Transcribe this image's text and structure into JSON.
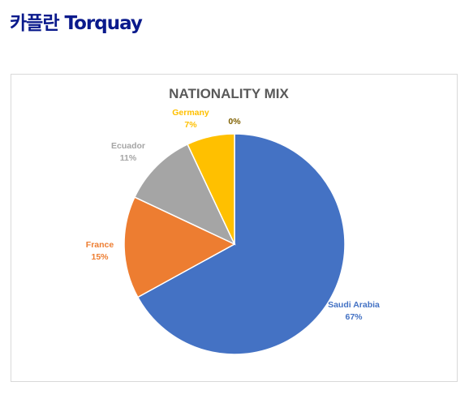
{
  "page": {
    "heading": "카플란 Torquay"
  },
  "chart_data": {
    "type": "pie",
    "title": "NATIONALITY MIX",
    "categories": [
      "Saudi Arabia",
      "France",
      "Ecuador",
      "Germany",
      ""
    ],
    "values": [
      67,
      15,
      11,
      7,
      0
    ],
    "value_labels": [
      "67%",
      "15%",
      "11%",
      "7%",
      "0%"
    ],
    "colors": [
      "#4472c4",
      "#ed7d31",
      "#a5a5a5",
      "#ffc000",
      "#7f6000"
    ],
    "start_angle": 0,
    "direction": "clockwise",
    "legend": "none",
    "data_labels": "outside"
  }
}
